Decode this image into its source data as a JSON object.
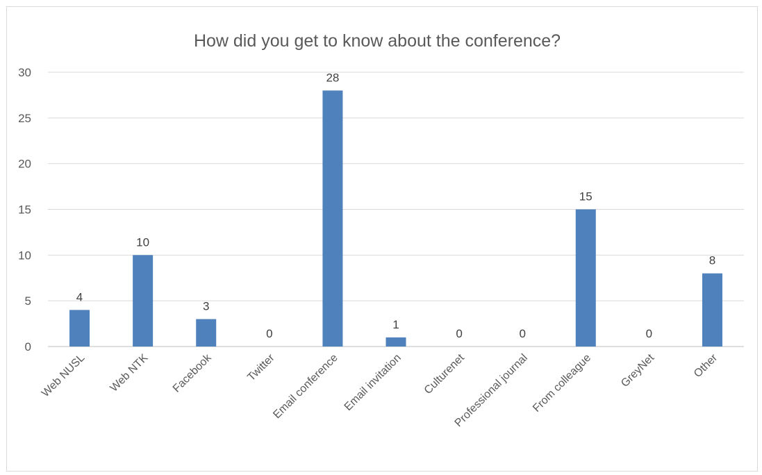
{
  "chart_data": {
    "type": "bar",
    "title": "How did you get to know about the conference?",
    "categories": [
      "Web NUSL",
      "Web NTK",
      "Facebook",
      "Twitter",
      "Email conference",
      "Email invitation",
      "Culturenet",
      "Professional journal",
      "From colleague",
      "GreyNet",
      "Other"
    ],
    "values": [
      4,
      10,
      3,
      0,
      28,
      1,
      0,
      0,
      15,
      0,
      8
    ],
    "yticks": [
      0,
      5,
      10,
      15,
      20,
      25,
      30
    ],
    "ylim": [
      0,
      30
    ],
    "xlabel": "",
    "ylabel": "",
    "grid": true,
    "legend": "none",
    "data_labels": true,
    "bar_color": "#4f81bd"
  }
}
